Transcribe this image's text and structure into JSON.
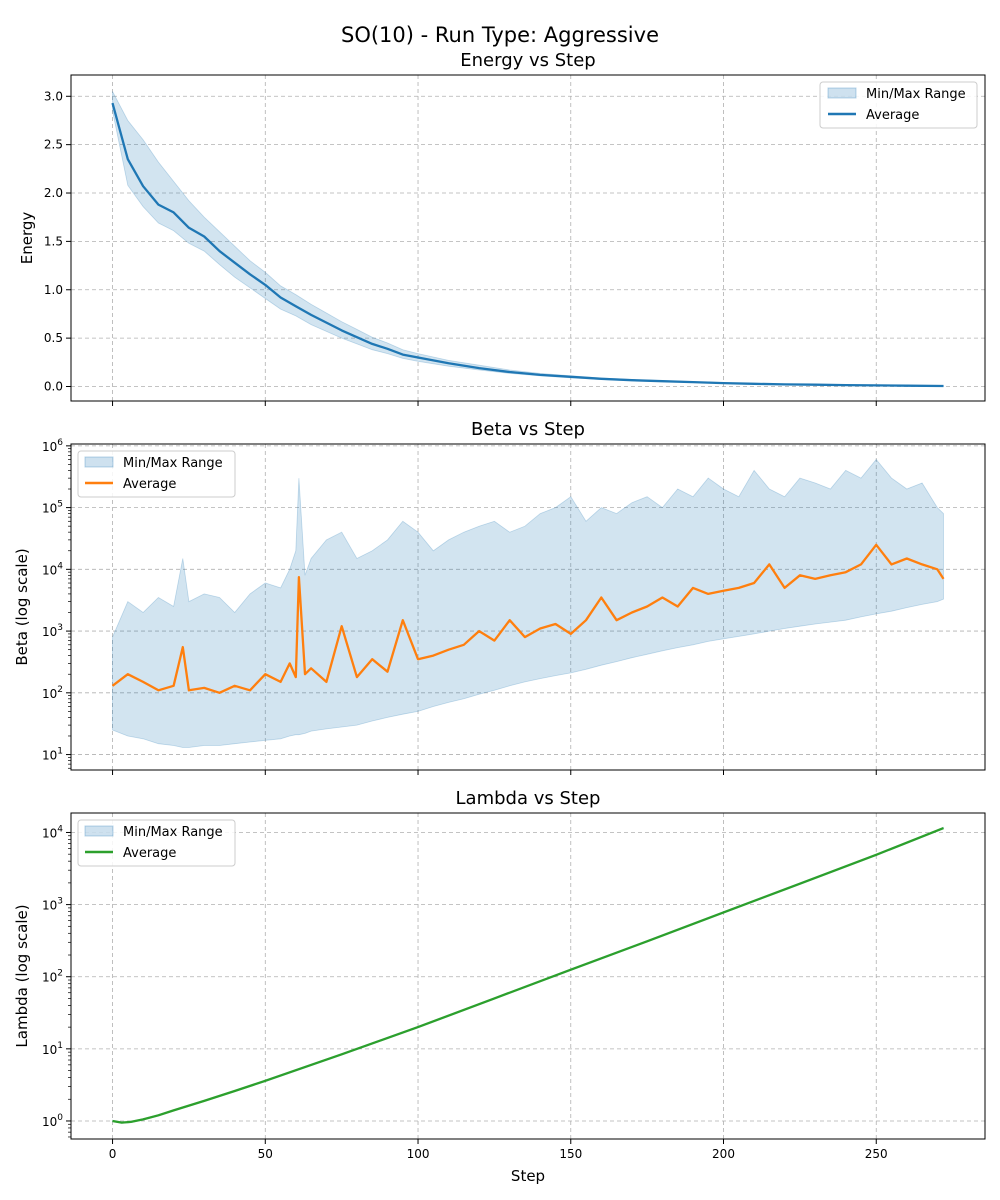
{
  "figure_title": "SO(10) - Run Type: Aggressive",
  "shared_xlabel": "Step",
  "colors": {
    "grid": "#b0b0b0",
    "band": "#1f77b4",
    "energy": "#1f77b4",
    "beta": "#ff7f0e",
    "lambda": "#2ca02c"
  },
  "chart_data": [
    {
      "id": "energy",
      "type": "line",
      "title": "Energy vs Step",
      "xlabel": "",
      "ylabel": "Energy",
      "yscale": "linear",
      "xlim": [
        -13.6,
        285.6
      ],
      "ylim": [
        -0.15,
        3.22
      ],
      "xticks": [
        0,
        50,
        100,
        150,
        200,
        250
      ],
      "yticks": [
        0.0,
        0.5,
        1.0,
        1.5,
        2.0,
        2.5,
        3.0
      ],
      "ytick_labels": [
        "0.0",
        "0.5",
        "1.0",
        "1.5",
        "2.0",
        "2.5",
        "3.0"
      ],
      "show_xtick_labels": false,
      "grid": true,
      "legend_loc": "upper right",
      "legend": [
        "Min/Max Range",
        "Average"
      ],
      "x": [
        0,
        5,
        10,
        15,
        20,
        25,
        30,
        35,
        40,
        45,
        50,
        55,
        60,
        65,
        70,
        75,
        80,
        85,
        90,
        95,
        100,
        110,
        120,
        130,
        140,
        150,
        160,
        170,
        180,
        190,
        200,
        210,
        220,
        230,
        240,
        250,
        260,
        272
      ],
      "average": [
        2.93,
        2.35,
        2.07,
        1.88,
        1.8,
        1.64,
        1.55,
        1.4,
        1.28,
        1.16,
        1.05,
        0.92,
        0.83,
        0.74,
        0.66,
        0.58,
        0.51,
        0.44,
        0.39,
        0.33,
        0.3,
        0.24,
        0.19,
        0.15,
        0.12,
        0.1,
        0.08,
        0.065,
        0.055,
        0.045,
        0.035,
        0.028,
        0.022,
        0.018,
        0.014,
        0.011,
        0.008,
        0.005
      ],
      "min": [
        2.85,
        2.08,
        1.86,
        1.69,
        1.61,
        1.48,
        1.4,
        1.26,
        1.13,
        1.02,
        0.91,
        0.8,
        0.73,
        0.64,
        0.57,
        0.5,
        0.44,
        0.38,
        0.34,
        0.29,
        0.26,
        0.21,
        0.17,
        0.135,
        0.11,
        0.09,
        0.072,
        0.06,
        0.05,
        0.041,
        0.032,
        0.026,
        0.02,
        0.016,
        0.012,
        0.009,
        0.007,
        0.004
      ],
      "max": [
        3.05,
        2.75,
        2.55,
        2.32,
        2.12,
        1.92,
        1.75,
        1.6,
        1.45,
        1.3,
        1.18,
        1.04,
        0.95,
        0.85,
        0.76,
        0.67,
        0.59,
        0.51,
        0.45,
        0.38,
        0.34,
        0.27,
        0.22,
        0.17,
        0.135,
        0.11,
        0.088,
        0.072,
        0.06,
        0.05,
        0.039,
        0.031,
        0.024,
        0.02,
        0.016,
        0.012,
        0.009,
        0.006
      ]
    },
    {
      "id": "beta",
      "type": "line",
      "title": "Beta vs Step",
      "xlabel": "",
      "ylabel": "Beta (log scale)",
      "yscale": "log",
      "xlim": [
        -13.6,
        285.6
      ],
      "ylim_log10": [
        0.75,
        6.03
      ],
      "xticks": [
        0,
        50,
        100,
        150,
        200,
        250
      ],
      "yticks_exp": [
        1,
        2,
        3,
        4,
        5,
        6
      ],
      "show_xtick_labels": false,
      "grid": true,
      "legend_loc": "upper left",
      "legend": [
        "Min/Max Range",
        "Average"
      ],
      "x": [
        0,
        5,
        10,
        15,
        20,
        23,
        25,
        30,
        35,
        40,
        45,
        50,
        55,
        58,
        60,
        61,
        63,
        65,
        70,
        75,
        80,
        85,
        90,
        95,
        100,
        105,
        110,
        115,
        120,
        125,
        130,
        135,
        140,
        145,
        150,
        155,
        160,
        165,
        170,
        175,
        180,
        185,
        190,
        195,
        200,
        205,
        210,
        215,
        220,
        225,
        230,
        235,
        240,
        245,
        250,
        255,
        260,
        265,
        270,
        272
      ],
      "average": [
        130,
        200,
        150,
        110,
        130,
        550,
        110,
        120,
        100,
        130,
        110,
        200,
        150,
        300,
        180,
        7500,
        200,
        250,
        150,
        1200,
        180,
        350,
        220,
        1500,
        350,
        400,
        500,
        600,
        1000,
        700,
        1500,
        800,
        1100,
        1300,
        900,
        1500,
        3500,
        1500,
        2000,
        2500,
        3500,
        2500,
        5000,
        4000,
        4500,
        5000,
        6000,
        12000,
        5000,
        8000,
        7000,
        8000,
        9000,
        12000,
        25000,
        12000,
        15000,
        12000,
        10000,
        7000
      ],
      "min": [
        25,
        20,
        18,
        15,
        14,
        13,
        13,
        14,
        14,
        15,
        16,
        17,
        18,
        20,
        21,
        21,
        22,
        24,
        26,
        28,
        30,
        35,
        40,
        45,
        50,
        60,
        70,
        80,
        95,
        110,
        130,
        150,
        170,
        190,
        210,
        240,
        280,
        320,
        370,
        420,
        480,
        540,
        600,
        680,
        750,
        820,
        900,
        1000,
        1100,
        1200,
        1300,
        1400,
        1500,
        1700,
        1900,
        2100,
        2400,
        2700,
        3000,
        3300
      ],
      "max": [
        800,
        3000,
        2000,
        3500,
        2500,
        15000,
        3000,
        4000,
        3500,
        2000,
        4000,
        6000,
        5000,
        10000,
        20000,
        300000,
        8000,
        15000,
        30000,
        40000,
        15000,
        20000,
        30000,
        60000,
        40000,
        20000,
        30000,
        40000,
        50000,
        60000,
        40000,
        50000,
        80000,
        100000,
        150000,
        60000,
        100000,
        80000,
        120000,
        150000,
        100000,
        200000,
        150000,
        300000,
        200000,
        150000,
        400000,
        200000,
        150000,
        300000,
        250000,
        200000,
        400000,
        300000,
        600000,
        300000,
        200000,
        250000,
        100000,
        80000
      ]
    },
    {
      "id": "lambda",
      "type": "line",
      "title": "Lambda vs Step",
      "xlabel": "Step",
      "ylabel": "Lambda (log scale)",
      "yscale": "log",
      "xlim": [
        -13.6,
        285.6
      ],
      "ylim_log10": [
        -0.25,
        4.27
      ],
      "xticks": [
        0,
        50,
        100,
        150,
        200,
        250
      ],
      "xtick_labels": [
        "0",
        "50",
        "100",
        "150",
        "200",
        "250"
      ],
      "yticks_exp": [
        0,
        1,
        2,
        3,
        4
      ],
      "show_xtick_labels": true,
      "grid": true,
      "legend_loc": "upper left",
      "legend": [
        "Min/Max Range",
        "Average"
      ],
      "x": [
        0,
        3,
        6,
        10,
        15,
        20,
        30,
        40,
        50,
        75,
        100,
        125,
        150,
        175,
        200,
        225,
        250,
        272
      ],
      "average": [
        1.0,
        0.95,
        0.97,
        1.05,
        1.2,
        1.4,
        1.9,
        2.6,
        3.6,
        8.4,
        20,
        50,
        125,
        310,
        780,
        1950,
        4900,
        11500
      ],
      "min": [
        0.98,
        0.93,
        0.95,
        1.03,
        1.17,
        1.37,
        1.86,
        2.55,
        3.5,
        8.2,
        19.5,
        49,
        122,
        303,
        760,
        1900,
        4780,
        11200
      ],
      "max": [
        1.02,
        0.97,
        0.99,
        1.07,
        1.23,
        1.43,
        1.94,
        2.65,
        3.7,
        8.6,
        20.5,
        51,
        128,
        317,
        800,
        2000,
        5020,
        11800
      ]
    }
  ]
}
